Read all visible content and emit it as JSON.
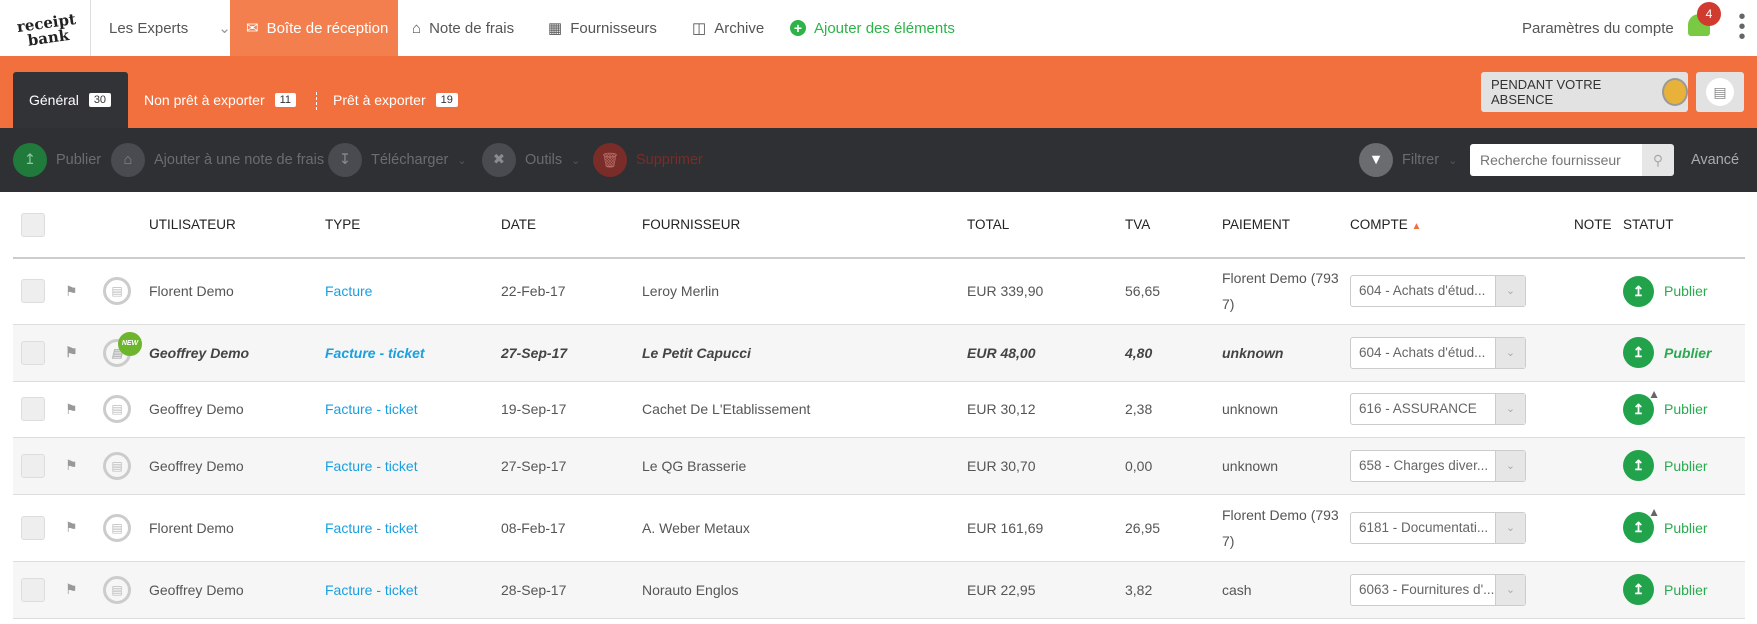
{
  "topnav": {
    "logo": "receipt bank",
    "client": "Les Experts",
    "items": [
      {
        "label": "Boîte de réception",
        "icon": "envelope-icon"
      },
      {
        "label": "Note de frais",
        "icon": "expense-icon"
      },
      {
        "label": "Fournisseurs",
        "icon": "store-icon"
      },
      {
        "label": "Archive",
        "icon": "archive-icon"
      }
    ],
    "add": "Ajouter des éléments",
    "account": "Paramètres du compte",
    "notifications": "4"
  },
  "tabs": [
    {
      "label": "Général",
      "count": "30"
    },
    {
      "label": "Non prêt à exporter",
      "count": "11"
    },
    {
      "label": "Prêt à exporter",
      "count": "19"
    }
  ],
  "absence": "PENDANT VOTRE ABSENCE",
  "toolbar": {
    "publish": "Publier",
    "add_expense": "Ajouter à une note de frais",
    "download": "Télécharger",
    "tools": "Outils",
    "delete": "Supprimer",
    "filter": "Filtrer",
    "search_placeholder": "Recherche fournisseur",
    "advanced": "Avancé"
  },
  "columns": [
    "Utilisateur",
    "Type",
    "Date",
    "Fournisseur",
    "Total",
    "TVA",
    "Paiement",
    "Compte",
    "Note",
    "Statut"
  ],
  "rows": [
    {
      "user": "Florent Demo",
      "type": "Facture",
      "date": "22-Feb-17",
      "supplier": "Leroy Merlin",
      "total": "EUR 339,90",
      "tva": "56,65",
      "payment": "Florent Demo (7937)",
      "account": "604 - Achats d'étud...",
      "status": "Publier",
      "new": false,
      "warn": false
    },
    {
      "user": "Geoffrey Demo",
      "type": "Facture - ticket",
      "date": "27-Sep-17",
      "supplier": "Le Petit Capucci",
      "total": "EUR 48,00",
      "tva": "4,80",
      "payment": "unknown",
      "account": "604 - Achats d'étud...",
      "status": "Publier",
      "new": true,
      "warn": false
    },
    {
      "user": "Geoffrey Demo",
      "type": "Facture - ticket",
      "date": "19-Sep-17",
      "supplier": "Cachet De L'Etablissement",
      "total": "EUR 30,12",
      "tva": "2,38",
      "payment": "unknown",
      "account": "616 - ASSURANCE",
      "status": "Publier",
      "new": false,
      "warn": true
    },
    {
      "user": "Geoffrey Demo",
      "type": "Facture - ticket",
      "date": "27-Sep-17",
      "supplier": "Le QG Brasserie",
      "total": "EUR 30,70",
      "tva": "0,00",
      "payment": "unknown",
      "account": "658 - Charges diver...",
      "status": "Publier",
      "new": false,
      "warn": false
    },
    {
      "user": "Florent Demo",
      "type": "Facture - ticket",
      "date": "08-Feb-17",
      "supplier": "A. Weber Metaux",
      "total": "EUR 161,69",
      "tva": "26,95",
      "payment": "Florent Demo (7937)",
      "account": "6181 - Documentati...",
      "status": "Publier",
      "new": false,
      "warn": true
    },
    {
      "user": "Geoffrey Demo",
      "type": "Facture - ticket",
      "date": "28-Sep-17",
      "supplier": "Norauto Englos",
      "total": "EUR 22,95",
      "tva": "3,82",
      "payment": "cash",
      "account": "6063 - Fournitures d'...",
      "status": "Publier",
      "new": false,
      "warn": false
    }
  ],
  "new_badge": "NEW",
  "colors": {
    "orange": "#f2703e",
    "dark": "#2f3033",
    "green": "#22a34b",
    "link": "#1a9fe0"
  }
}
